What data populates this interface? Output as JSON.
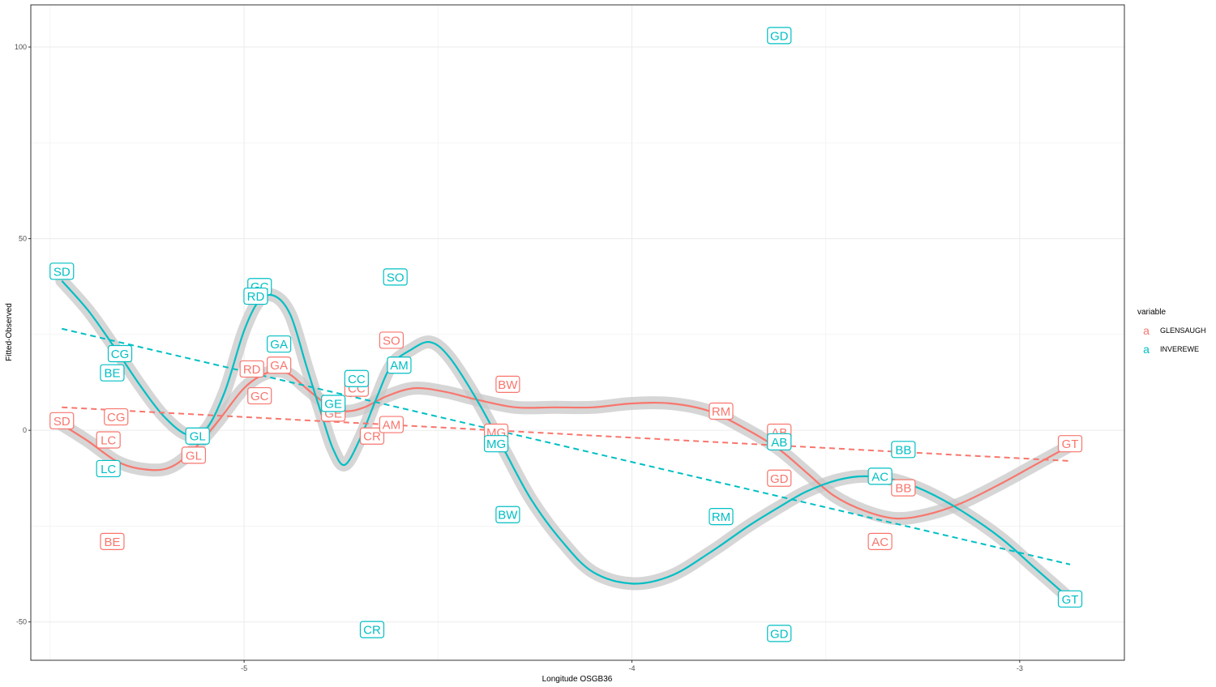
{
  "chart_data": {
    "type": "scatter",
    "xlabel": "Longitude OSGB36",
    "ylabel": "Fitted-Observed",
    "xlim": [
      -5.55,
      -2.73
    ],
    "ylim": [
      -60,
      111
    ],
    "x_ticks": [
      -5,
      -4,
      -3
    ],
    "y_ticks": [
      -50,
      0,
      50,
      100
    ],
    "x_tick_labels": [
      "-5",
      "-4",
      "-3"
    ],
    "y_tick_labels": [
      "-50",
      "0",
      "50",
      "100"
    ],
    "grid": true,
    "legend": {
      "title": "variable",
      "position": "right",
      "key_glyph": "a",
      "entries": [
        {
          "name": "GLENSAUGH",
          "color": "#F8766D"
        },
        {
          "name": "INVEREWE",
          "color": "#00BFC4"
        }
      ]
    },
    "series": [
      {
        "name": "GLENSAUGH",
        "color": "#F8766D",
        "points": [
          {
            "label": "SD",
            "x": -5.47,
            "y": 2.5
          },
          {
            "label": "LC",
            "x": -5.35,
            "y": -2.5
          },
          {
            "label": "CG",
            "x": -5.33,
            "y": 3.5
          },
          {
            "label": "BE",
            "x": -5.34,
            "y": -29
          },
          {
            "label": "GL",
            "x": -5.13,
            "y": -6.5
          },
          {
            "label": "RD",
            "x": -4.98,
            "y": 16
          },
          {
            "label": "GC",
            "x": -4.96,
            "y": 9
          },
          {
            "label": "GA",
            "x": -4.91,
            "y": 17
          },
          {
            "label": "GE",
            "x": -4.77,
            "y": 4.5
          },
          {
            "label": "CC",
            "x": -4.71,
            "y": 11
          },
          {
            "label": "CR",
            "x": -4.67,
            "y": -1.5
          },
          {
            "label": "SO",
            "x": -4.62,
            "y": 23.5
          },
          {
            "label": "AM",
            "x": -4.62,
            "y": 1.5
          },
          {
            "label": "MG",
            "x": -4.35,
            "y": -0.5
          },
          {
            "label": "BW",
            "x": -4.32,
            "y": 12
          },
          {
            "label": "RM",
            "x": -3.77,
            "y": 5
          },
          {
            "label": "AB",
            "x": -3.62,
            "y": -0.5
          },
          {
            "label": "GD",
            "x": -3.62,
            "y": -12.5
          },
          {
            "label": "BB",
            "x": -3.3,
            "y": -15
          },
          {
            "label": "AC",
            "x": -3.36,
            "y": -29
          },
          {
            "label": "GT",
            "x": -2.87,
            "y": -3.5
          }
        ],
        "trend": [
          [
            -5.47,
            6
          ],
          [
            -2.87,
            -8
          ]
        ],
        "smooth": [
          [
            -5.47,
            1.5
          ],
          [
            -5.4,
            -3
          ],
          [
            -5.33,
            -8
          ],
          [
            -5.27,
            -10
          ],
          [
            -5.2,
            -10
          ],
          [
            -5.14,
            -6
          ],
          [
            -5.07,
            2
          ],
          [
            -5.0,
            11
          ],
          [
            -4.94,
            15
          ],
          [
            -4.89,
            15
          ],
          [
            -4.84,
            11
          ],
          [
            -4.79,
            7
          ],
          [
            -4.74,
            5
          ],
          [
            -4.69,
            6
          ],
          [
            -4.63,
            9
          ],
          [
            -4.56,
            11
          ],
          [
            -4.48,
            10
          ],
          [
            -4.4,
            8
          ],
          [
            -4.3,
            6
          ],
          [
            -4.2,
            6
          ],
          [
            -4.1,
            6
          ],
          [
            -4.0,
            7
          ],
          [
            -3.9,
            7
          ],
          [
            -3.8,
            5
          ],
          [
            -3.7,
            0
          ],
          [
            -3.62,
            -5
          ],
          [
            -3.55,
            -11
          ],
          [
            -3.48,
            -17
          ],
          [
            -3.4,
            -21
          ],
          [
            -3.32,
            -23
          ],
          [
            -3.24,
            -22
          ],
          [
            -3.15,
            -19
          ],
          [
            -3.05,
            -14
          ],
          [
            -2.96,
            -9
          ],
          [
            -2.87,
            -4
          ]
        ]
      },
      {
        "name": "INVEREWE",
        "color": "#00BFC4",
        "points": [
          {
            "label": "SD",
            "x": -5.47,
            "y": 41.5
          },
          {
            "label": "CG",
            "x": -5.32,
            "y": 20
          },
          {
            "label": "BE",
            "x": -5.34,
            "y": 15
          },
          {
            "label": "LC",
            "x": -5.35,
            "y": -10
          },
          {
            "label": "GL",
            "x": -5.12,
            "y": -1.5
          },
          {
            "label": "GC",
            "x": -4.96,
            "y": 37.5
          },
          {
            "label": "RD",
            "x": -4.97,
            "y": 35
          },
          {
            "label": "GA",
            "x": -4.91,
            "y": 22.5
          },
          {
            "label": "CC",
            "x": -4.71,
            "y": 13.5
          },
          {
            "label": "GE",
            "x": -4.77,
            "y": 7
          },
          {
            "label": "CR",
            "x": -4.67,
            "y": -52
          },
          {
            "label": "SO",
            "x": -4.61,
            "y": 40
          },
          {
            "label": "AM",
            "x": -4.6,
            "y": 17
          },
          {
            "label": "MG",
            "x": -4.35,
            "y": -3.5
          },
          {
            "label": "BW",
            "x": -4.32,
            "y": -22
          },
          {
            "label": "RM",
            "x": -3.77,
            "y": -22.5
          },
          {
            "label": "AB",
            "x": -3.62,
            "y": -3
          },
          {
            "label": "GD",
            "x": -3.62,
            "y": 103
          },
          {
            "label": "GD",
            "x": -3.62,
            "y": -53
          },
          {
            "label": "BB",
            "x": -3.3,
            "y": -5
          },
          {
            "label": "AC",
            "x": -3.36,
            "y": -12
          },
          {
            "label": "GT",
            "x": -2.87,
            "y": -44
          }
        ],
        "trend": [
          [
            -5.47,
            26.5
          ],
          [
            -2.87,
            -35
          ]
        ],
        "smooth": [
          [
            -5.47,
            39
          ],
          [
            -5.4,
            31
          ],
          [
            -5.33,
            21
          ],
          [
            -5.27,
            12
          ],
          [
            -5.21,
            4
          ],
          [
            -5.15,
            -1
          ],
          [
            -5.1,
            0
          ],
          [
            -5.05,
            10
          ],
          [
            -5.0,
            26
          ],
          [
            -4.96,
            34
          ],
          [
            -4.92,
            35
          ],
          [
            -4.88,
            30
          ],
          [
            -4.84,
            17
          ],
          [
            -4.8,
            4
          ],
          [
            -4.77,
            -5
          ],
          [
            -4.74,
            -9
          ],
          [
            -4.7,
            -2
          ],
          [
            -4.66,
            8
          ],
          [
            -4.62,
            17
          ],
          [
            -4.57,
            21
          ],
          [
            -4.52,
            23
          ],
          [
            -4.47,
            19
          ],
          [
            -4.4,
            8
          ],
          [
            -4.33,
            -5
          ],
          [
            -4.26,
            -18
          ],
          [
            -4.18,
            -29
          ],
          [
            -4.1,
            -37
          ],
          [
            -4.0,
            -40
          ],
          [
            -3.9,
            -38
          ],
          [
            -3.8,
            -32
          ],
          [
            -3.7,
            -25
          ],
          [
            -3.62,
            -20
          ],
          [
            -3.55,
            -16
          ],
          [
            -3.47,
            -13
          ],
          [
            -3.4,
            -12
          ],
          [
            -3.32,
            -13
          ],
          [
            -3.24,
            -16
          ],
          [
            -3.15,
            -21
          ],
          [
            -3.05,
            -28
          ],
          [
            -2.96,
            -36
          ],
          [
            -2.87,
            -44
          ]
        ]
      }
    ]
  }
}
